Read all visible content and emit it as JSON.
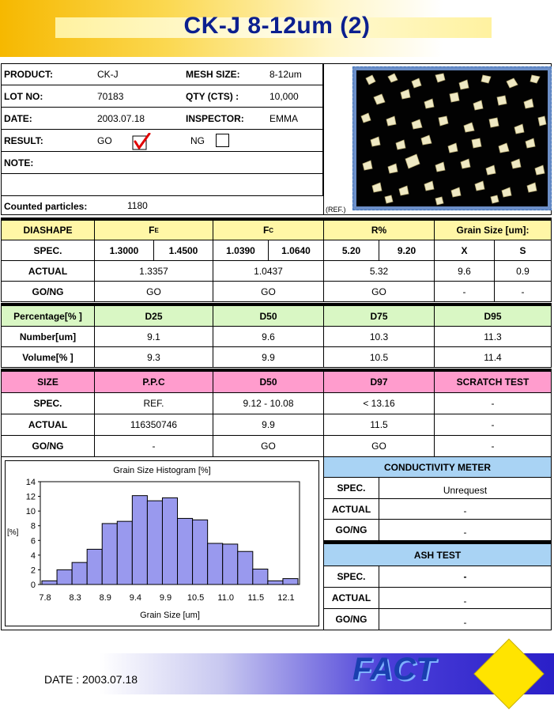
{
  "header": {
    "title": "CK-J 8-12um (2)"
  },
  "info": {
    "product_label": "PRODUCT:",
    "product": "CK-J",
    "mesh_label": "MESH SIZE:",
    "mesh": "8-12um",
    "lot_label": "LOT NO:",
    "lot": "70183",
    "qty_label": "QTY (CTS) :",
    "qty": "10,000",
    "date_label": "DATE:",
    "date": "2003.07.18",
    "inspector_label": "INSPECTOR:",
    "inspector": "EMMA",
    "result_label": "RESULT:",
    "go": "GO",
    "ng": "NG",
    "note_label": "NOTE:",
    "counted_label": "Counted particles:",
    "counted": "1180",
    "ref_label": "(REF.)"
  },
  "diashape": {
    "headers": [
      "DIASHAPE",
      "F",
      "F",
      "R%",
      "Grain Size [um]:"
    ],
    "subscripts": [
      "E",
      "C"
    ],
    "spec_label": "SPEC.",
    "spec": [
      "1.3000",
      "1.4500",
      "1.0390",
      "1.0640",
      "5.20",
      "9.20",
      "X",
      "S"
    ],
    "actual_label": "ACTUAL",
    "actual": [
      "1.3357",
      "1.0437",
      "5.32",
      "9.6",
      "0.9"
    ],
    "gong_label": "GO/NG",
    "gong": [
      "GO",
      "GO",
      "GO",
      "-",
      "-"
    ]
  },
  "percentage": {
    "headers": [
      "Percentage[% ]",
      "D25",
      "D50",
      "D75",
      "D95"
    ],
    "number_label": "Number[um]",
    "number": [
      "9.1",
      "9.6",
      "10.3",
      "11.3"
    ],
    "volume_label": "Volume[% ]",
    "volume": [
      "9.3",
      "9.9",
      "10.5",
      "11.4"
    ]
  },
  "size": {
    "headers": [
      "SIZE",
      "P.P.C",
      "D50",
      "D97",
      "SCRATCH TEST"
    ],
    "spec_label": "SPEC.",
    "spec": [
      "REF.",
      "9.12 - 10.08",
      "< 13.16",
      "-"
    ],
    "actual_label": "ACTUAL",
    "actual": [
      "116350746",
      "9.9",
      "11.5",
      "-"
    ],
    "gong_label": "GO/NG",
    "gong": [
      "-",
      "GO",
      "GO",
      "-"
    ]
  },
  "conductivity": {
    "title": "CONDUCTIVITY METER",
    "spec_label": "SPEC.",
    "spec": "Unrequest",
    "actual_label": "ACTUAL",
    "actual": "-",
    "gong_label": "GO/NG",
    "gong": "-"
  },
  "ash": {
    "title": "ASH TEST",
    "spec_label": "SPEC.",
    "spec": "-",
    "actual_label": "ACTUAL",
    "actual": "-",
    "gong_label": "GO/NG",
    "gong": "-"
  },
  "footer": {
    "date": "DATE : 2003.07.18",
    "logo": "FACT"
  },
  "chart_data": {
    "type": "bar",
    "title": "Grain Size Histogram [%]",
    "xlabel": "Grain Size [um]",
    "ylabel": "[%]",
    "ylim": [
      0,
      14
    ],
    "yticks": [
      "0",
      "2",
      "4",
      "6",
      "8",
      "10",
      "12",
      "14"
    ],
    "xticks": [
      "7.8",
      "8.3",
      "8.9",
      "9.4",
      "9.9",
      "10.5",
      "11.0",
      "11.5",
      "12.1"
    ],
    "values": [
      0.5,
      2.0,
      3.0,
      4.8,
      8.3,
      8.6,
      12.1,
      11.4,
      11.8,
      9.0,
      8.8,
      5.6,
      5.5,
      4.5,
      2.1,
      0.5,
      0.8
    ],
    "bar_color": "#9999ee",
    "grid": false
  }
}
